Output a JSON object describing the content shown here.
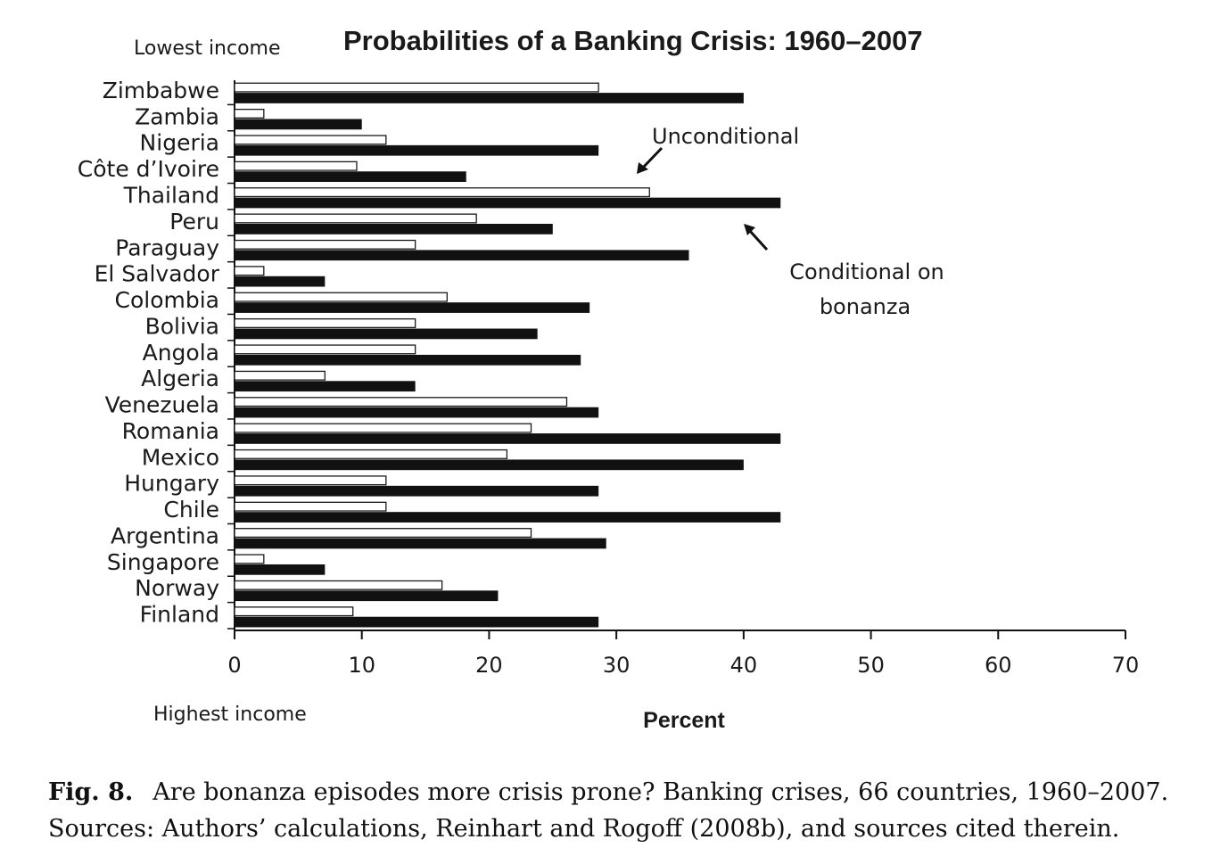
{
  "chart_data": {
    "type": "bar",
    "orientation": "horizontal",
    "title": "Probabilities of a Banking Crisis: 1960–2007",
    "top_label": "Lowest income",
    "bottom_label": "Highest income",
    "xlabel": "Percent",
    "xlim": [
      0,
      70
    ],
    "xticks": [
      0,
      10,
      20,
      30,
      40,
      50,
      60,
      70
    ],
    "categories": [
      "Zimbabwe",
      "Zambia",
      "Nigeria",
      "Côte d’Ivoire",
      "Thailand",
      "Peru",
      "Paraguay",
      "El Salvador",
      "Colombia",
      "Bolivia",
      "Angola",
      "Algeria",
      "Venezuela",
      "Romania",
      "Mexico",
      "Hungary",
      "Chile",
      "Argentina",
      "Singapore",
      "Norway",
      "Finland"
    ],
    "series": [
      {
        "name": "Unconditional",
        "fill": "#ffffff",
        "stroke": "#1a1a1a",
        "values": [
          28.6,
          2.3,
          11.9,
          9.6,
          32.6,
          19.0,
          14.2,
          2.3,
          16.7,
          14.2,
          14.2,
          7.1,
          26.1,
          23.3,
          21.4,
          11.9,
          11.9,
          23.3,
          2.3,
          16.3,
          9.3
        ]
      },
      {
        "name": "Conditional on bonanza",
        "fill": "#111111",
        "stroke": "#111111",
        "values": [
          40.0,
          10.0,
          28.6,
          18.2,
          42.9,
          25.0,
          35.7,
          7.1,
          27.9,
          23.8,
          27.2,
          14.2,
          28.6,
          42.9,
          40.0,
          28.6,
          42.9,
          29.2,
          7.1,
          20.7,
          28.6
        ]
      }
    ],
    "annotations": {
      "unconditional": "Unconditional",
      "conditional_line1": "Conditional on",
      "conditional_line2": "bonanza"
    }
  },
  "caption": {
    "label": "Fig. 8.",
    "text": "Are bonanza episodes more crisis prone? Banking crises, 66 countries, 1960–2007. Sources: Authors’ calculations, Reinhart and Rogoff (2008b), and sources cited therein."
  }
}
